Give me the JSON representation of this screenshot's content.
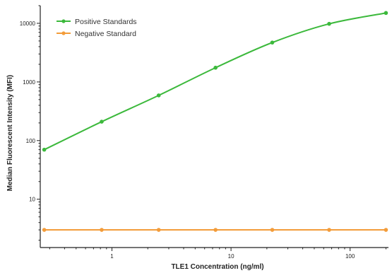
{
  "chart_data": {
    "type": "line",
    "xlabel": "TLE1 Concentration (ng/ml)",
    "ylabel": "Median Fluorescent Intensity (MFI)",
    "xscale": "log",
    "yscale": "log",
    "xlim": [
      0.25,
      210
    ],
    "ylim": [
      1.5,
      20000
    ],
    "xticks": [
      1,
      10,
      100
    ],
    "xtick_labels": [
      "1",
      "10",
      "100"
    ],
    "yticks": [
      10,
      100,
      1000,
      10000
    ],
    "ytick_labels": [
      "10",
      "100",
      "1000",
      "10000"
    ],
    "grid": false,
    "legend_position": "top-left",
    "series": [
      {
        "name": "Positive Standards",
        "color": "#3cb93c",
        "x": [
          0.27,
          0.82,
          2.47,
          7.41,
          22.2,
          66.7,
          200
        ],
        "y": [
          70,
          210,
          590,
          1750,
          4700,
          9800,
          15000
        ]
      },
      {
        "name": "Negative Standard",
        "color": "#f39c3a",
        "x": [
          0.27,
          0.82,
          2.47,
          7.41,
          22.2,
          66.7,
          200
        ],
        "y": [
          3,
          3,
          3,
          3,
          3,
          3,
          3
        ]
      }
    ]
  }
}
